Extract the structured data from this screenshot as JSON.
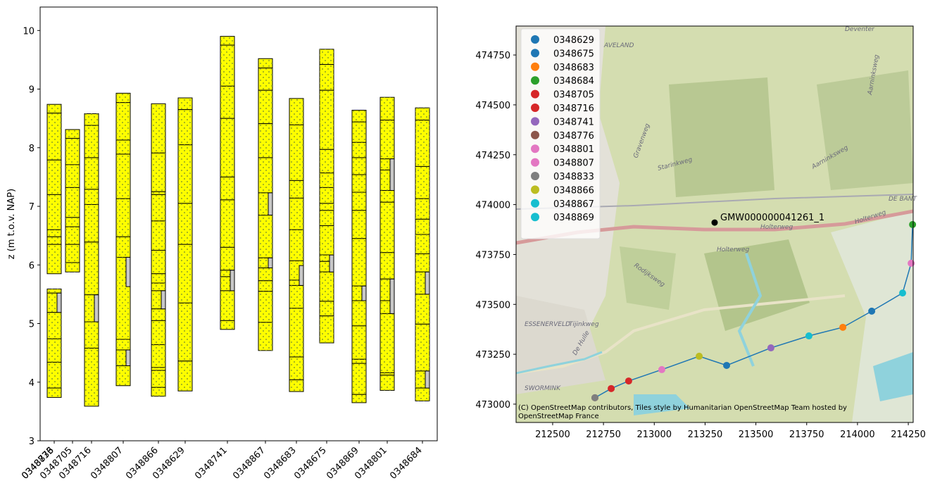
{
  "chart_data": [
    {
      "type": "borehole",
      "ylabel": "z (m t.o.v. NAP)",
      "ylim": [
        3,
        10.4
      ],
      "yticks": [
        3,
        4,
        5,
        6,
        7,
        8,
        9,
        10
      ],
      "xlim": [
        0,
        564
      ],
      "fill_color": "#ffff00",
      "filter_color": "#c8c8c8",
      "boreholes": [
        {
          "name": "0348833",
          "x": 20,
          "boundaries": [
            5.59,
            5.52,
            5.19,
            4.74,
            4.34,
            3.9,
            3.74
          ],
          "filters": [
            [
              5.52,
              5.19
            ]
          ]
        },
        {
          "name": "0348776",
          "x": 20,
          "boundaries": [
            8.74,
            8.59,
            7.79,
            7.2,
            6.6,
            6.48,
            6.35,
            5.85
          ],
          "filters": []
        },
        {
          "name": "0348705",
          "x": 46,
          "boundaries": [
            8.31,
            8.16,
            7.71,
            7.32,
            6.81,
            6.65,
            6.35,
            6.04,
            5.88
          ],
          "filters": []
        },
        {
          "name": "0348716",
          "x": 73,
          "boundaries": [
            8.58,
            8.38,
            7.83,
            7.29,
            7.03,
            6.39,
            5.49,
            5.03,
            4.58,
            3.59
          ],
          "filters": [
            [
              5.49,
              5.03
            ]
          ]
        },
        {
          "name": "0348807",
          "x": 118,
          "boundaries": [
            8.93,
            8.77,
            8.13,
            7.89,
            7.13,
            6.48,
            6.13,
            4.73,
            4.55,
            4.28,
            3.94
          ],
          "filters": [
            [
              6.13,
              5.63
            ],
            [
              4.55,
              4.28
            ]
          ]
        },
        {
          "name": "0348866",
          "x": 168,
          "boundaries": [
            8.75,
            7.91,
            7.25,
            7.2,
            6.75,
            6.25,
            5.85,
            5.69,
            5.56,
            5.25,
            5.05,
            4.64,
            4.25,
            4.2,
            3.91,
            3.76
          ],
          "filters": [
            [
              5.56,
              5.25
            ]
          ]
        },
        {
          "name": "0348629",
          "x": 206,
          "boundaries": [
            8.85,
            8.65,
            8.05,
            7.05,
            6.35,
            5.35,
            4.36,
            3.85
          ],
          "filters": []
        },
        {
          "name": "0348741",
          "x": 266,
          "boundaries": [
            9.9,
            9.75,
            9.05,
            8.5,
            7.5,
            7.11,
            6.3,
            5.91,
            5.8,
            5.56,
            5.05,
            4.9
          ],
          "filters": [
            [
              5.91,
              5.56
            ]
          ]
        },
        {
          "name": "0348867",
          "x": 320,
          "boundaries": [
            9.52,
            9.36,
            8.98,
            8.41,
            7.83,
            7.23,
            6.85,
            6.12,
            5.95,
            5.73,
            5.55,
            5.02,
            4.54
          ],
          "filters": [
            [
              7.23,
              6.85
            ],
            [
              6.12,
              5.95
            ]
          ]
        },
        {
          "name": "0348683",
          "x": 364,
          "boundaries": [
            8.84,
            8.39,
            7.44,
            7.14,
            6.6,
            6.07,
            5.74,
            5.65,
            5.26,
            4.43,
            4.04,
            3.84
          ],
          "filters": [
            [
              5.99,
              5.65
            ]
          ]
        },
        {
          "name": "0348675",
          "x": 407,
          "boundaries": [
            9.68,
            9.42,
            8.98,
            7.97,
            7.57,
            7.32,
            7.05,
            6.93,
            6.67,
            6.17,
            6.06,
            5.88,
            5.38,
            5.13,
            4.67
          ],
          "filters": [
            [
              6.17,
              5.88
            ]
          ]
        },
        {
          "name": "0348869",
          "x": 453,
          "boundaries": [
            8.64,
            8.44,
            8.09,
            7.83,
            7.54,
            7.24,
            6.93,
            6.45,
            5.64,
            5.39,
            4.96,
            4.39,
            4.32,
            3.79,
            3.65
          ],
          "filters": [
            [
              5.64,
              5.39
            ]
          ]
        },
        {
          "name": "0348801",
          "x": 493,
          "boundaries": [
            8.86,
            8.47,
            7.81,
            7.62,
            7.27,
            7.07,
            6.21,
            5.76,
            5.39,
            5.17,
            4.16,
            4.12,
            3.86
          ],
          "filters": [
            [
              7.81,
              7.27
            ],
            [
              5.76,
              5.17
            ]
          ]
        },
        {
          "name": "0348684",
          "x": 543,
          "boundaries": [
            8.68,
            8.47,
            7.68,
            7.13,
            6.78,
            6.52,
            6.19,
            5.88,
            5.5,
            4.99,
            4.19,
            3.9,
            3.68
          ],
          "filters": [
            [
              5.88,
              5.5
            ],
            [
              4.19,
              3.9
            ]
          ]
        }
      ]
    },
    {
      "type": "map_scatter",
      "xlim": [
        212320,
        214274
      ],
      "ylim": [
        472908,
        474895
      ],
      "xticks": [
        212500,
        212750,
        213000,
        213250,
        213500,
        213750,
        214000,
        214250
      ],
      "yticks": [
        473000,
        473250,
        473500,
        473750,
        474000,
        474250,
        474500,
        474750
      ],
      "legend": "upper left",
      "series": [
        {
          "name": "0348629",
          "color": "#1f77b4",
          "x": 213356,
          "y": 473194
        },
        {
          "name": "0348675",
          "color": "#1f77b4",
          "x": 214070,
          "y": 473466
        },
        {
          "name": "0348683",
          "color": "#ff7f0e",
          "x": 213928,
          "y": 473385
        },
        {
          "name": "0348684",
          "color": "#2ca02c",
          "x": 214271,
          "y": 473900
        },
        {
          "name": "0348705",
          "color": "#d62728",
          "x": 212788,
          "y": 473078
        },
        {
          "name": "0348716",
          "color": "#d62728",
          "x": 212874,
          "y": 473116
        },
        {
          "name": "0348741",
          "color": "#9467bd",
          "x": 213574,
          "y": 473282
        },
        {
          "name": "0348776",
          "color": "#8c564b",
          "x": 212708,
          "y": 473032
        },
        {
          "name": "0348801",
          "color": "#e377c2",
          "x": 213037,
          "y": 473173
        },
        {
          "name": "0348807",
          "color": "#e377c2",
          "x": 214264,
          "y": 473706
        },
        {
          "name": "0348833",
          "color": "#7f7f7f",
          "x": 212708,
          "y": 473032
        },
        {
          "name": "0348866",
          "color": "#bcbd22",
          "x": 213221,
          "y": 473240
        },
        {
          "name": "0348867",
          "color": "#17becf",
          "x": 213761,
          "y": 473342
        },
        {
          "name": "0348869",
          "color": "#17becf",
          "x": 214222,
          "y": 473557
        }
      ],
      "line": {
        "color": "#1f77b4",
        "x": [
          212708,
          212788,
          212874,
          213037,
          213221,
          213356,
          213574,
          213761,
          213928,
          214070,
          214222,
          214264,
          214271
        ],
        "y": [
          473032,
          473078,
          473116,
          473173,
          473240,
          473194,
          473282,
          473342,
          473385,
          473466,
          473557,
          473706,
          473900
        ]
      },
      "point": {
        "label": "GMW000000041261_1",
        "color": "#000000",
        "x": 213297,
        "y": 473910
      },
      "attribution": "(C) OpenStreetMap contributors, Tiles style by Humanitarian OpenStreetMap Team hosted by OpenStreetMap France",
      "map_labels": [
        "Holterweg",
        "Holterweg",
        "Holterweg",
        "Rodijksweg",
        "ESSENERVELD",
        "Tijinkweg",
        "SWORMINK",
        "Starinkweg",
        "Gravenweg",
        "Aarninksweg",
        "Aarninksweg",
        "DE BANT",
        "AVELAND",
        "Deventer",
        "De Hulle"
      ]
    }
  ]
}
